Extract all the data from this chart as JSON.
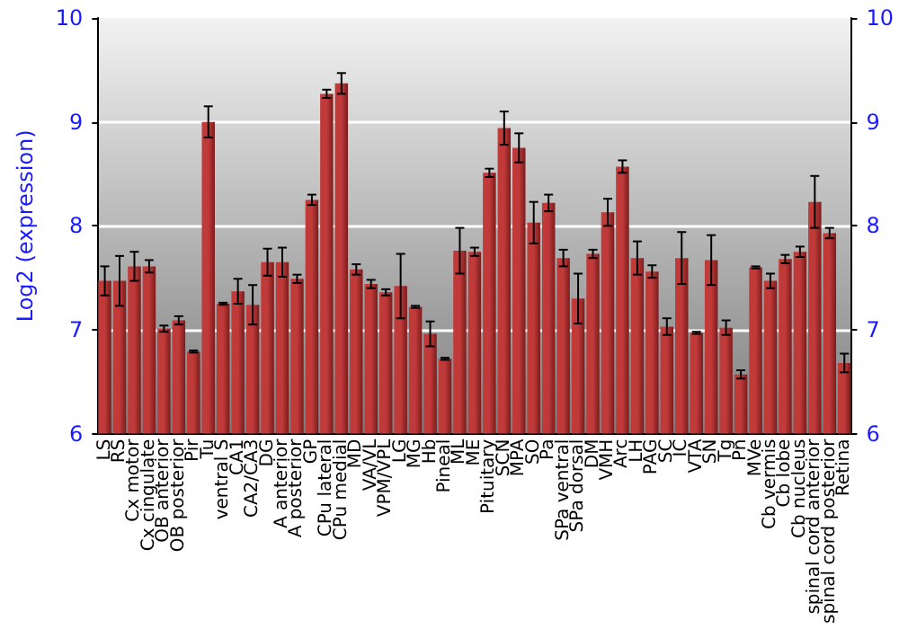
{
  "chart_data": {
    "type": "bar",
    "ylabel": "Log2 (expression)",
    "categories": [
      "LS",
      "RS",
      "Cx motor",
      "Cx cingulate",
      "OB anterior",
      "OB posterior",
      "Pir",
      "Tu",
      "ventral S",
      "CA1",
      "CA2/CA3",
      "DG",
      "A anterior",
      "A posterior",
      "GP",
      "CPu lateral",
      "CPu medial",
      "MD",
      "VA/VL",
      "VPM/VPL",
      "LG",
      "MG",
      "Hb",
      "Pineal",
      "ML",
      "ME",
      "Pituitary",
      "SCN",
      "MPA",
      "SO",
      "Pa",
      "SPa ventral",
      "SPa dorsal",
      "DM",
      "VMH",
      "Arc",
      "LH",
      "PAG",
      "SC",
      "IC",
      "VTA",
      "SN",
      "Tg",
      "Pn",
      "MVe",
      "Cb vermis",
      "Cb lobe",
      "Cb nucleus",
      "spinal cord anterior",
      "spinal cord posterior",
      "Retina"
    ],
    "values": [
      7.47,
      7.47,
      7.61,
      7.61,
      7.01,
      7.09,
      6.79,
      9.0,
      7.25,
      7.37,
      7.24,
      7.65,
      7.65,
      7.49,
      8.25,
      9.27,
      9.37,
      7.58,
      7.44,
      7.36,
      7.42,
      7.22,
      6.96,
      6.72,
      7.76,
      7.75,
      8.51,
      8.94,
      8.75,
      8.03,
      8.22,
      7.69,
      7.3,
      7.73,
      8.13,
      8.57,
      7.69,
      7.56,
      7.03,
      7.69,
      6.97,
      7.67,
      7.02,
      6.57,
      7.6,
      7.47,
      7.68,
      7.75,
      8.23,
      7.93,
      6.68
    ],
    "errors": [
      0.14,
      0.24,
      0.14,
      0.06,
      0.03,
      0.04,
      0.01,
      0.15,
      0.01,
      0.12,
      0.19,
      0.13,
      0.14,
      0.04,
      0.05,
      0.04,
      0.1,
      0.05,
      0.04,
      0.03,
      0.31,
      0.01,
      0.12,
      0.01,
      0.22,
      0.04,
      0.04,
      0.16,
      0.14,
      0.2,
      0.08,
      0.08,
      0.24,
      0.04,
      0.13,
      0.06,
      0.16,
      0.06,
      0.08,
      0.25,
      0.01,
      0.24,
      0.07,
      0.04,
      0.01,
      0.07,
      0.04,
      0.05,
      0.25,
      0.05,
      0.09
    ],
    "color": "#c03a3a",
    "ylim": [
      6,
      10
    ],
    "yticks": [
      6,
      7,
      8,
      9,
      10
    ],
    "y2lim": [
      6,
      10
    ],
    "y2ticks": [
      6,
      7,
      8,
      9,
      10
    ],
    "grid": "y"
  }
}
